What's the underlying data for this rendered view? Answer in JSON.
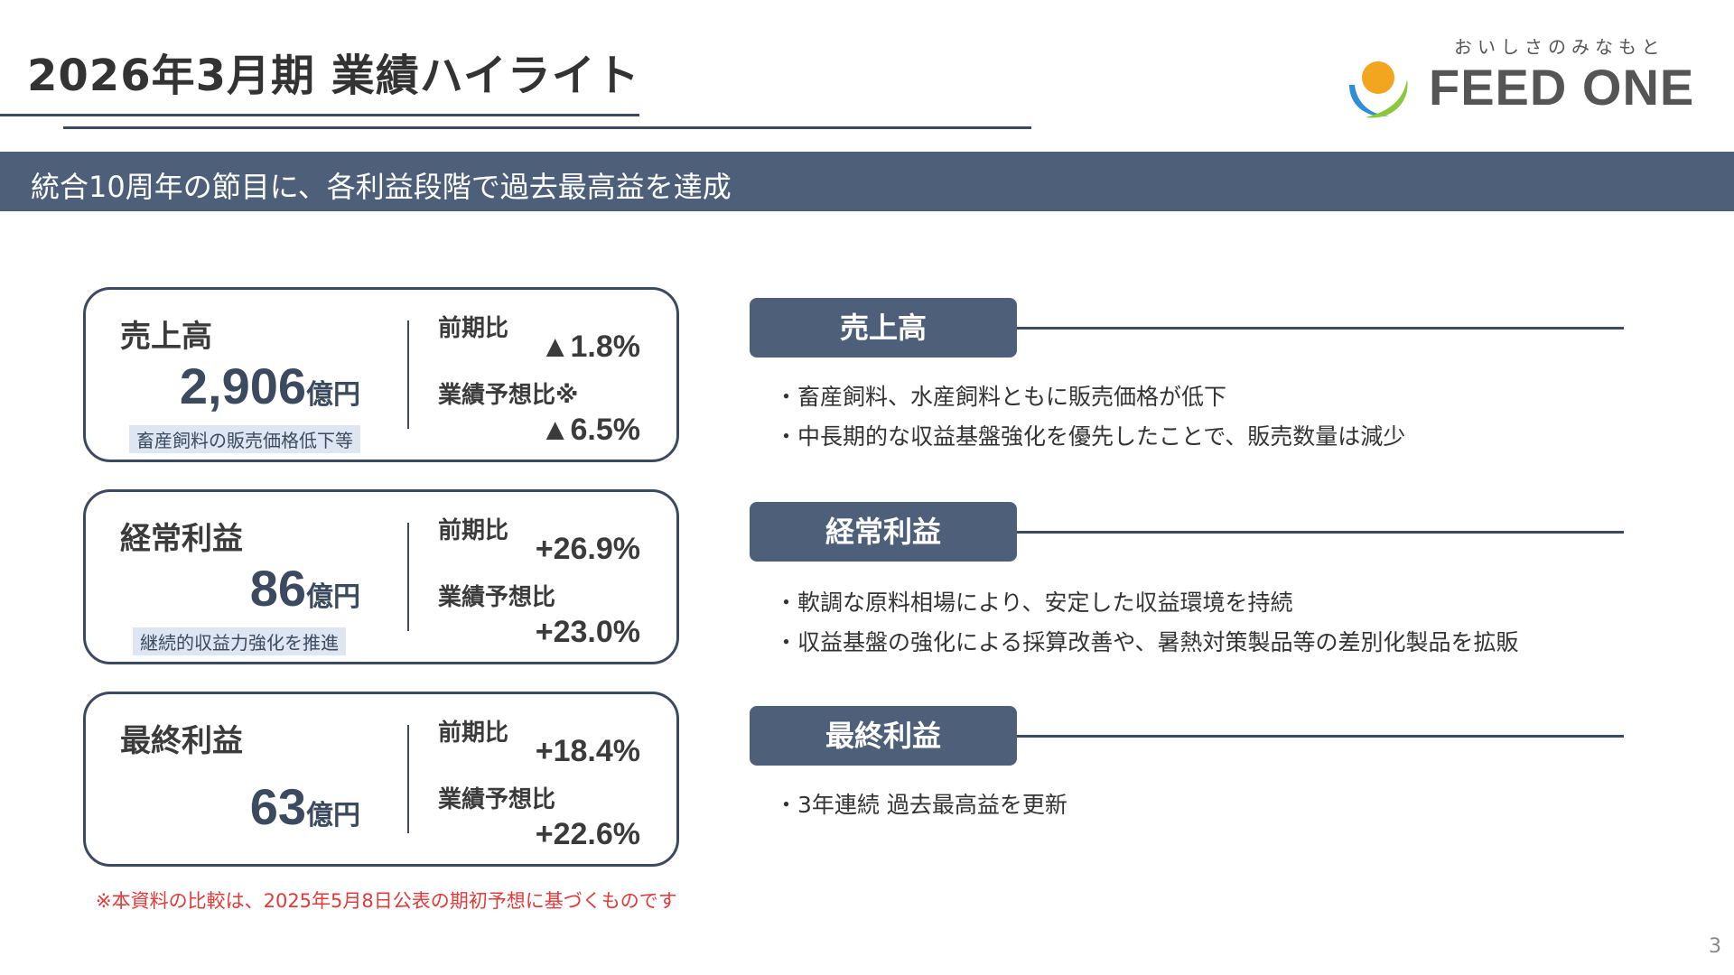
{
  "header": {
    "title": "2026年3月期 業績ハイライト"
  },
  "logo": {
    "tagline": "おいしさのみなもと",
    "brand": "FEED ONE"
  },
  "banner": {
    "text": "統合10周年の節目に、各利益段階で過去最高益を達成"
  },
  "cards": [
    {
      "label": "売上高",
      "amount": "2,906",
      "unit": "億円",
      "note": "畜産飼料の販売価格低下等",
      "cmp_a_label": "前期比",
      "cmp_a_value": "▲1.8%",
      "cmp_b_label": "業績予想比※",
      "cmp_b_value": "▲6.5%"
    },
    {
      "label": "経常利益",
      "amount": "86",
      "unit": "億円",
      "note": "継続的収益力強化を推進",
      "cmp_a_label": "前期比",
      "cmp_a_value": "+26.9%",
      "cmp_b_label": "業績予想比",
      "cmp_b_value": "+23.0%"
    },
    {
      "label": "最終利益",
      "amount": "63",
      "unit": "億円",
      "cmp_a_label": "前期比",
      "cmp_a_value": "+18.4%",
      "cmp_b_label": "業績予想比",
      "cmp_b_value": "+22.6%"
    }
  ],
  "sections": [
    {
      "title": "売上高",
      "bullets": [
        "畜産飼料、水産飼料ともに販売価格が低下",
        "中長期的な収益基盤強化を優先したことで、販売数量は減少"
      ]
    },
    {
      "title": "経常利益",
      "bullets": [
        "軟調な原料相場により、安定した収益環境を持続",
        "収益基盤の強化による採算改善や、暑熱対策製品等の差別化製品を拡販"
      ]
    },
    {
      "title": "最終利益",
      "bullets": [
        "3年連続 過去最高益を更新"
      ]
    }
  ],
  "footnote": "※本資料の比較は、2025年5月8日公表の期初予想に基づくものです",
  "page_number": "3",
  "colors": {
    "navy": "#4e6079",
    "accent_red": "#e03a3a",
    "logo_orange": "#f2a51e",
    "logo_blue": "#2e8ed6",
    "logo_green": "#8dc63f"
  }
}
